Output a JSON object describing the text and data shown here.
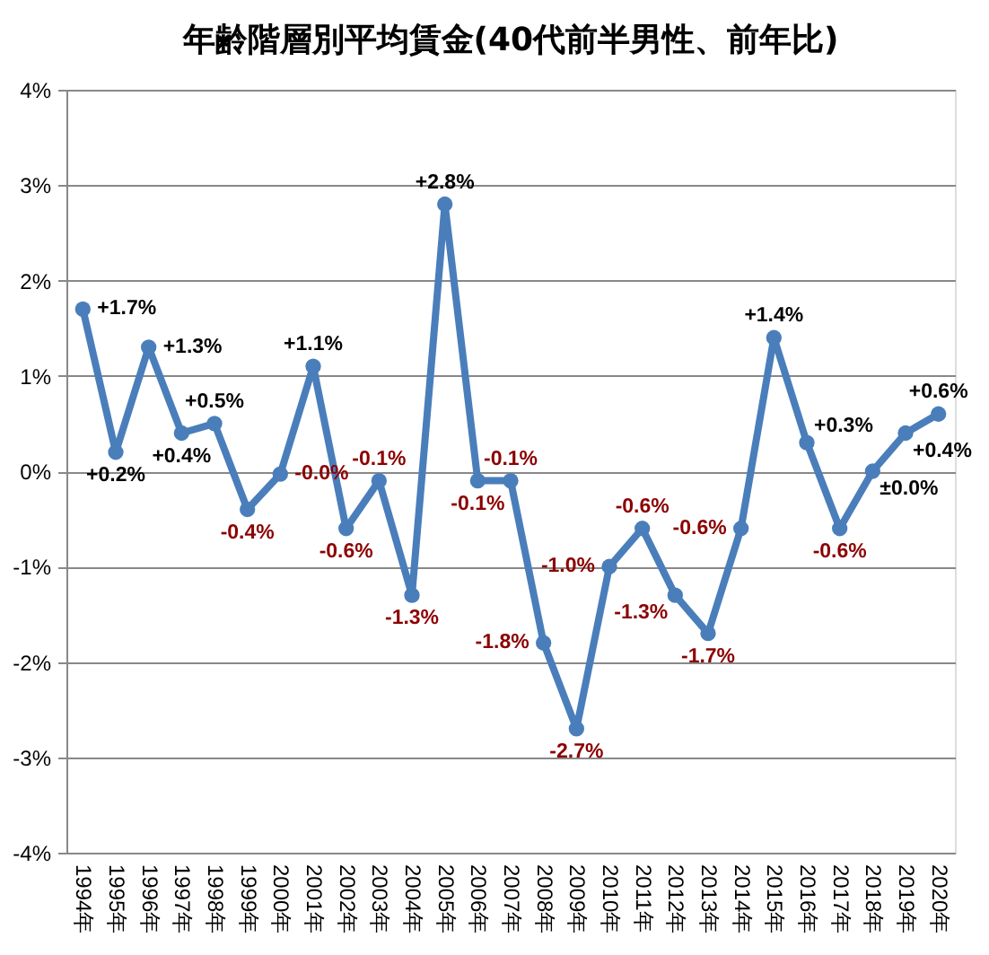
{
  "chart_data": {
    "type": "line",
    "title": "年齢階層別平均賃金(40代前半男性、前年比)",
    "categories": [
      "1994年",
      "1995年",
      "1996年",
      "1997年",
      "1998年",
      "1999年",
      "2000年",
      "2001年",
      "2002年",
      "2003年",
      "2004年",
      "2005年",
      "2006年",
      "2007年",
      "2008年",
      "2009年",
      "2010年",
      "2011年",
      "2012年",
      "2013年",
      "2014年",
      "2015年",
      "2016年",
      "2017年",
      "2018年",
      "2019年",
      "2020年"
    ],
    "series": [
      {
        "color": "#4a7ebb",
        "values": [
          1.7,
          0.2,
          1.3,
          0.4,
          0.5,
          -0.4,
          -0.03,
          1.1,
          -0.6,
          -0.1,
          -1.3,
          2.8,
          -0.1,
          -0.1,
          -1.8,
          -2.7,
          -1.0,
          -0.6,
          -1.3,
          -1.7,
          -0.6,
          1.4,
          0.3,
          -0.6,
          0.0,
          0.4,
          0.6
        ],
        "value_labels": [
          "+1.7%",
          "+0.2%",
          "+1.3%",
          "+0.4%",
          "+0.5%",
          "-0.4%",
          "-0.0%",
          "+1.1%",
          "-0.6%",
          "-0.1%",
          "-1.3%",
          "+2.8%",
          "-0.1%",
          "-0.1%",
          "-1.8%",
          "-2.7%",
          "-1.0%",
          "-0.6%",
          "-1.3%",
          "-1.7%",
          "-0.6%",
          "+1.4%",
          "+0.3%",
          "-0.6%",
          "±0.0%",
          "+0.4%",
          "+0.6%"
        ]
      }
    ],
    "ylim": [
      -4,
      4
    ],
    "yticks": [
      {
        "value": -4,
        "label": "-4%"
      },
      {
        "value": -3,
        "label": "-3%"
      },
      {
        "value": -2,
        "label": "-2%"
      },
      {
        "value": -1,
        "label": "-1%"
      },
      {
        "value": 0,
        "label": "0%"
      },
      {
        "value": 1,
        "label": "1%"
      },
      {
        "value": 2,
        "label": "2%"
      },
      {
        "value": 3,
        "label": "3%"
      },
      {
        "value": 4,
        "label": "4%"
      }
    ],
    "grid": "y",
    "marker": "circle",
    "line_style": "solid"
  }
}
